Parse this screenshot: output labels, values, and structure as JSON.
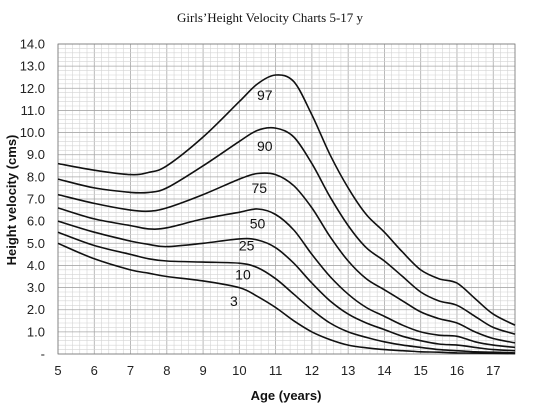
{
  "chart_data": {
    "type": "line",
    "title": "Girls’Height Velocity Charts 5-17 y",
    "xlabel": "Age (years)",
    "ylabel": "Height velocity (cms)",
    "xlim": [
      5,
      17.6
    ],
    "ylim": [
      0,
      14
    ],
    "x_ticks": [
      "5",
      "6",
      "7",
      "8",
      "9",
      "10",
      "11",
      "12",
      "13",
      "14",
      "15",
      "16",
      "17"
    ],
    "y_ticks": [
      "-",
      "1.0",
      "2.0",
      "3.0",
      "4.0",
      "5.0",
      "6.0",
      "7.0",
      "8.0",
      "9.0",
      "10.0",
      "11.0",
      "12.0",
      "13.0",
      "14.0"
    ],
    "grid": true,
    "series": [
      {
        "name": "97",
        "label_at": [
          10.7,
          11.7
        ],
        "points": [
          [
            5,
            8.6
          ],
          [
            6,
            8.3
          ],
          [
            7,
            8.1
          ],
          [
            7.5,
            8.2
          ],
          [
            8,
            8.5
          ],
          [
            9,
            9.8
          ],
          [
            10,
            11.4
          ],
          [
            10.5,
            12.2
          ],
          [
            11,
            12.6
          ],
          [
            11.5,
            12.3
          ],
          [
            12,
            10.8
          ],
          [
            12.5,
            9.0
          ],
          [
            13,
            7.5
          ],
          [
            13.5,
            6.3
          ],
          [
            14,
            5.5
          ],
          [
            14.5,
            4.6
          ],
          [
            15,
            3.8
          ],
          [
            15.5,
            3.4
          ],
          [
            16,
            3.2
          ],
          [
            16.5,
            2.5
          ],
          [
            17,
            1.8
          ],
          [
            17.6,
            1.3
          ]
        ]
      },
      {
        "name": "90",
        "label_at": [
          10.7,
          9.4
        ],
        "points": [
          [
            5,
            7.9
          ],
          [
            6,
            7.5
          ],
          [
            7,
            7.3
          ],
          [
            7.5,
            7.3
          ],
          [
            8,
            7.5
          ],
          [
            9,
            8.5
          ],
          [
            10,
            9.6
          ],
          [
            10.5,
            10.1
          ],
          [
            11,
            10.2
          ],
          [
            11.5,
            9.8
          ],
          [
            12,
            8.6
          ],
          [
            12.5,
            7.1
          ],
          [
            13,
            5.8
          ],
          [
            13.5,
            4.8
          ],
          [
            14,
            4.2
          ],
          [
            14.5,
            3.5
          ],
          [
            15,
            2.8
          ],
          [
            15.5,
            2.4
          ],
          [
            16,
            2.2
          ],
          [
            16.5,
            1.7
          ],
          [
            17,
            1.2
          ],
          [
            17.6,
            0.9
          ]
        ]
      },
      {
        "name": "75",
        "label_at": [
          10.55,
          7.5
        ],
        "points": [
          [
            5,
            7.2
          ],
          [
            6,
            6.8
          ],
          [
            7,
            6.5
          ],
          [
            7.5,
            6.45
          ],
          [
            8,
            6.6
          ],
          [
            9,
            7.2
          ],
          [
            10,
            7.9
          ],
          [
            10.5,
            8.15
          ],
          [
            11,
            8.1
          ],
          [
            11.5,
            7.6
          ],
          [
            12,
            6.6
          ],
          [
            12.5,
            5.3
          ],
          [
            13,
            4.2
          ],
          [
            13.5,
            3.4
          ],
          [
            14,
            2.9
          ],
          [
            14.5,
            2.4
          ],
          [
            15,
            1.9
          ],
          [
            15.5,
            1.6
          ],
          [
            16,
            1.4
          ],
          [
            16.5,
            1.0
          ],
          [
            17,
            0.7
          ],
          [
            17.6,
            0.5
          ]
        ]
      },
      {
        "name": "50",
        "label_at": [
          10.5,
          5.9
        ],
        "points": [
          [
            5,
            6.6
          ],
          [
            6,
            6.1
          ],
          [
            7,
            5.8
          ],
          [
            7.5,
            5.65
          ],
          [
            8,
            5.7
          ],
          [
            9,
            6.1
          ],
          [
            10,
            6.4
          ],
          [
            10.5,
            6.55
          ],
          [
            11,
            6.3
          ],
          [
            11.5,
            5.6
          ],
          [
            12,
            4.5
          ],
          [
            12.5,
            3.5
          ],
          [
            13,
            2.7
          ],
          [
            13.5,
            2.1
          ],
          [
            14,
            1.7
          ],
          [
            14.5,
            1.3
          ],
          [
            15,
            1.0
          ],
          [
            15.5,
            0.85
          ],
          [
            16,
            0.8
          ],
          [
            16.5,
            0.55
          ],
          [
            17,
            0.4
          ],
          [
            17.6,
            0.3
          ]
        ]
      },
      {
        "name": "25",
        "label_at": [
          10.2,
          4.9
        ],
        "points": [
          [
            5,
            6.0
          ],
          [
            6,
            5.5
          ],
          [
            7,
            5.1
          ],
          [
            7.5,
            4.95
          ],
          [
            8,
            4.85
          ],
          [
            9,
            5.0
          ],
          [
            10,
            5.2
          ],
          [
            10.5,
            5.15
          ],
          [
            11,
            4.8
          ],
          [
            11.5,
            4.1
          ],
          [
            12,
            3.2
          ],
          [
            12.5,
            2.4
          ],
          [
            13,
            1.8
          ],
          [
            13.5,
            1.4
          ],
          [
            14,
            1.1
          ],
          [
            14.5,
            0.8
          ],
          [
            15,
            0.6
          ],
          [
            15.5,
            0.45
          ],
          [
            16,
            0.4
          ],
          [
            16.5,
            0.3
          ],
          [
            17,
            0.2
          ],
          [
            17.6,
            0.15
          ]
        ]
      },
      {
        "name": "10",
        "label_at": [
          10.1,
          3.6
        ],
        "points": [
          [
            5,
            5.5
          ],
          [
            6,
            4.9
          ],
          [
            7,
            4.5
          ],
          [
            7.5,
            4.3
          ],
          [
            8,
            4.2
          ],
          [
            9,
            4.15
          ],
          [
            10,
            4.1
          ],
          [
            10.5,
            3.9
          ],
          [
            11,
            3.4
          ],
          [
            11.5,
            2.7
          ],
          [
            12,
            2.0
          ],
          [
            12.5,
            1.4
          ],
          [
            13,
            1.0
          ],
          [
            13.5,
            0.75
          ],
          [
            14,
            0.55
          ],
          [
            14.5,
            0.4
          ],
          [
            15,
            0.3
          ],
          [
            15.5,
            0.2
          ],
          [
            16,
            0.15
          ],
          [
            16.5,
            0.1
          ],
          [
            17,
            0.08
          ],
          [
            17.6,
            0.05
          ]
        ]
      },
      {
        "name": "3",
        "label_at": [
          9.85,
          2.4
        ],
        "points": [
          [
            5,
            5.0
          ],
          [
            6,
            4.3
          ],
          [
            7,
            3.8
          ],
          [
            7.5,
            3.65
          ],
          [
            8,
            3.5
          ],
          [
            9,
            3.3
          ],
          [
            10,
            3.0
          ],
          [
            10.5,
            2.6
          ],
          [
            11,
            2.1
          ],
          [
            11.5,
            1.5
          ],
          [
            12,
            1.0
          ],
          [
            12.5,
            0.65
          ],
          [
            13,
            0.4
          ],
          [
            13.5,
            0.28
          ],
          [
            14,
            0.2
          ],
          [
            14.5,
            0.15
          ],
          [
            15,
            0.1
          ],
          [
            15.5,
            0.08
          ],
          [
            16,
            0.05
          ],
          [
            16.5,
            0.04
          ],
          [
            17,
            0.03
          ],
          [
            17.6,
            0.02
          ]
        ]
      }
    ]
  }
}
